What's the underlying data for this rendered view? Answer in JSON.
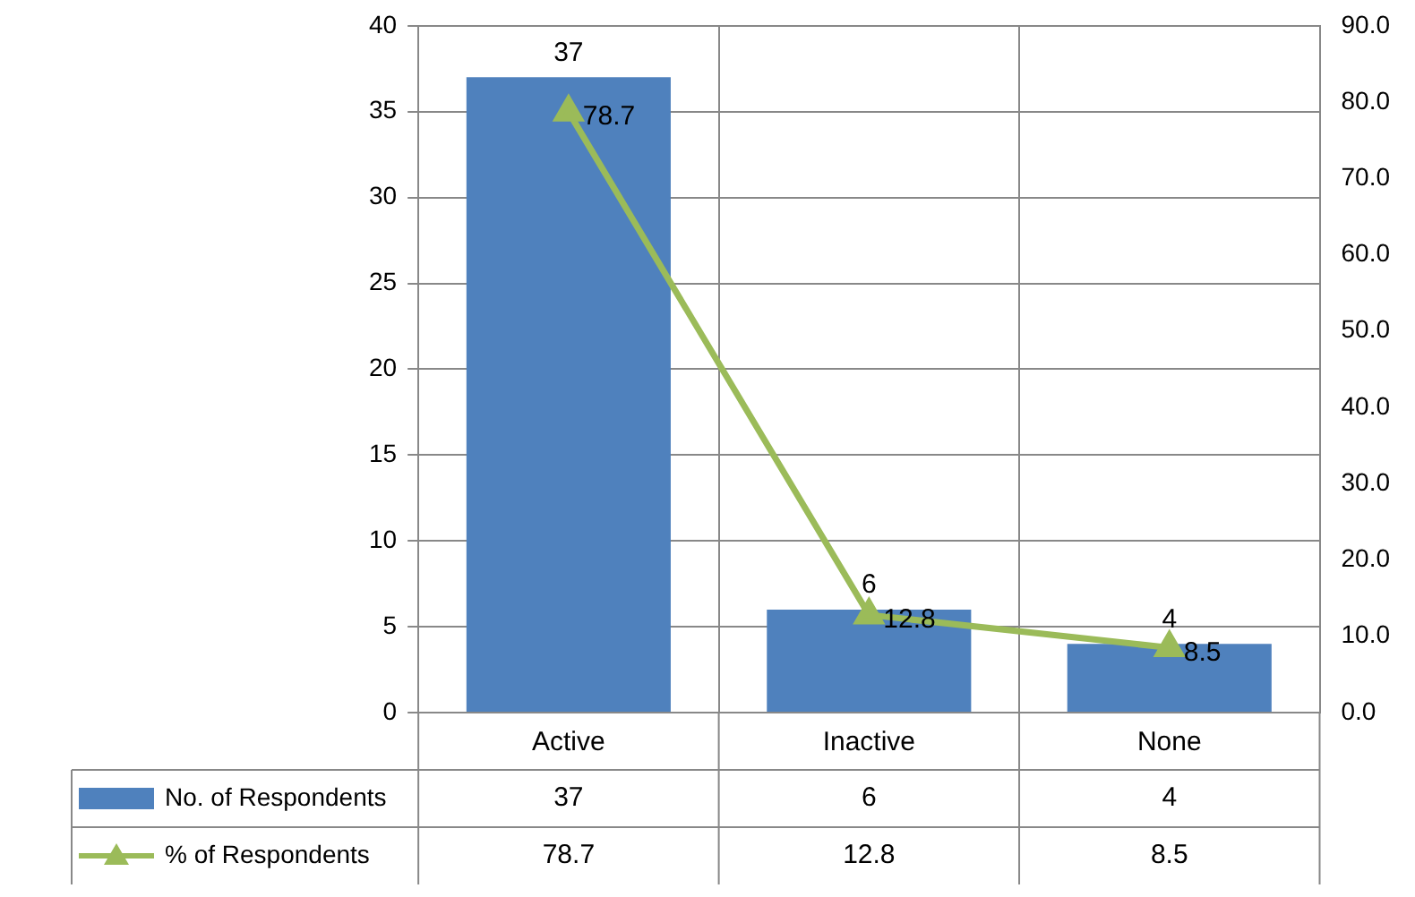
{
  "chart_data": {
    "type": "bar",
    "categories": [
      "Active",
      "Inactive",
      "None"
    ],
    "series": [
      {
        "name": "No. of Respondents",
        "color": "#4f81bd",
        "values": [
          37,
          6,
          4
        ]
      },
      {
        "name": "% of Respondents",
        "type": "line",
        "axis": "y2",
        "color": "#9bbb59",
        "values": [
          78.7,
          12.8,
          8.5
        ],
        "marker": "triangle"
      }
    ],
    "ylim": [
      0,
      40
    ],
    "yticks": [
      0,
      5,
      10,
      15,
      20,
      25,
      30,
      35,
      40
    ],
    "y2lim": [
      0,
      90
    ],
    "y2ticks": [
      {
        "value": 0,
        "label": "0.0"
      },
      {
        "value": 10,
        "label": "10.0"
      },
      {
        "value": 20,
        "label": "20.0"
      },
      {
        "value": 30,
        "label": "30.0"
      },
      {
        "value": 40,
        "label": "40.0"
      },
      {
        "value": 50,
        "label": "50.0"
      },
      {
        "value": 60,
        "label": "60.0"
      },
      {
        "value": 70,
        "label": "70.0"
      },
      {
        "value": 80,
        "label": "80.0"
      },
      {
        "value": 90,
        "label": "90.0"
      }
    ],
    "annotations": [
      "37",
      "6",
      "4",
      "78.7",
      "12.8",
      "8.5"
    ],
    "grid": true,
    "legend": "bottom",
    "data_labels": true
  }
}
